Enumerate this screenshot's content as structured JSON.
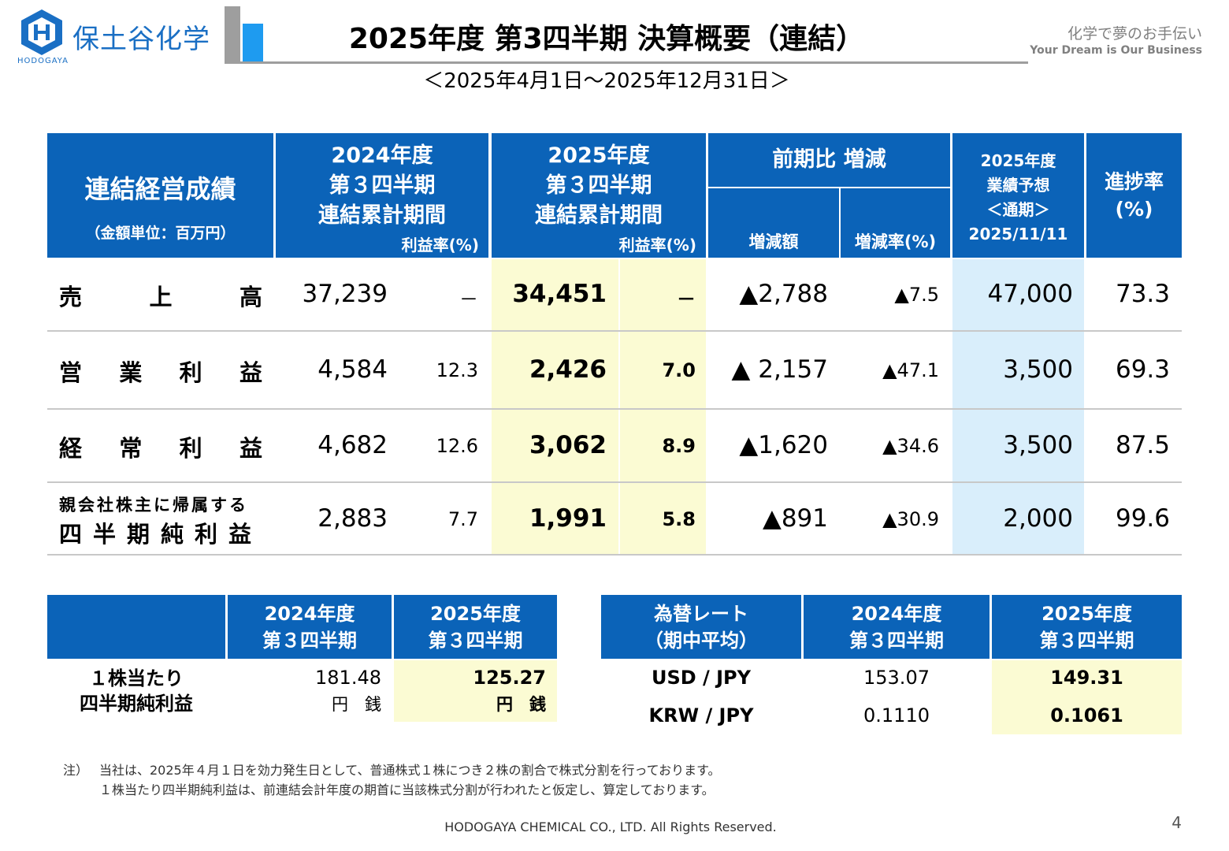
{
  "company": {
    "name": "保土谷化学",
    "sub": "HODOGAYA"
  },
  "header": {
    "title": "2025年度 第3四半期 決算概要（連結）",
    "subtitle": "＜2025年4月1日～2025年12月31日＞",
    "tagline_jp": "化学で夢のお手伝い",
    "tagline_en": "Your Dream is Our Business"
  },
  "main_table": {
    "title": "連結経営成績",
    "unit": "（金額単位：百万円）",
    "col_prev": [
      "2024年度",
      "第３四半期",
      "連結累計期間"
    ],
    "col_curr": [
      "2025年度",
      "第３四半期",
      "連結累計期間"
    ],
    "margin_label": "利益率(%)",
    "change_header": "前期比 増減",
    "change_amount": "増減額",
    "change_rate": "増減率(%)",
    "forecast": [
      "2025年度",
      "業績予想",
      "＜通期＞",
      "2025/11/11"
    ],
    "progress": [
      "進捗率",
      "(%)"
    ],
    "rows": [
      {
        "label": "売上高",
        "prev": "37,239",
        "prev_margin": "－",
        "curr": "34,451",
        "curr_margin": "－",
        "chg": "▲2,788",
        "chg_rate": "▲7.5",
        "forecast": "47,000",
        "progress": "73.3"
      },
      {
        "label": "営業利益",
        "prev": "4,584",
        "prev_margin": "12.3",
        "curr": "2,426",
        "curr_margin": "7.0",
        "chg": "▲ 2,157",
        "chg_rate": "▲47.1",
        "forecast": "3,500",
        "progress": "69.3"
      },
      {
        "label": "経常利益",
        "prev": "4,682",
        "prev_margin": "12.6",
        "curr": "3,062",
        "curr_margin": "8.9",
        "chg": "▲1,620",
        "chg_rate": "▲34.6",
        "forecast": "3,500",
        "progress": "87.5"
      },
      {
        "label_line1": "親会社株主に帰属する",
        "label_line2": "四半期純利益",
        "prev": "2,883",
        "prev_margin": "7.7",
        "curr": "1,991",
        "curr_margin": "5.8",
        "chg": "▲891",
        "chg_rate": "▲30.9",
        "forecast": "2,000",
        "progress": "99.6"
      }
    ]
  },
  "eps_table": {
    "col_prev": [
      "2024年度",
      "第３四半期"
    ],
    "col_curr": [
      "2025年度",
      "第３四半期"
    ],
    "label": [
      "１株当たり",
      "四半期純利益"
    ],
    "prev": "181.48",
    "prev_unit": "円　銭",
    "curr": "125.27",
    "curr_unit": "円　銭"
  },
  "fx_table": {
    "header": [
      "為替レート",
      "（期中平均）"
    ],
    "col_prev": [
      "2024年度",
      "第３四半期"
    ],
    "col_curr": [
      "2025年度",
      "第３四半期"
    ],
    "rows": [
      {
        "pair": "USD / JPY",
        "prev": "153.07",
        "curr": "149.31"
      },
      {
        "pair": "KRW / JPY",
        "prev": "0.1110",
        "curr": "0.1061"
      }
    ]
  },
  "notes": {
    "marker": "注）",
    "line1": "当社は、2025年４月１日を効力発生日として、普通株式１株につき２株の割合で株式分割を行っております。",
    "line2": "１株当たり四半期純利益は、前連結会計年度の期首に当該株式分割が行われたと仮定し、算定しております。"
  },
  "footer": {
    "copyright": "HODOGAYA CHEMICAL CO., LTD. All Rights Reserved.",
    "page": "4"
  },
  "colors": {
    "header_blue": "#0b63b8",
    "highlight_yellow": "#fbfbd3",
    "highlight_blue": "#d9eefb"
  }
}
